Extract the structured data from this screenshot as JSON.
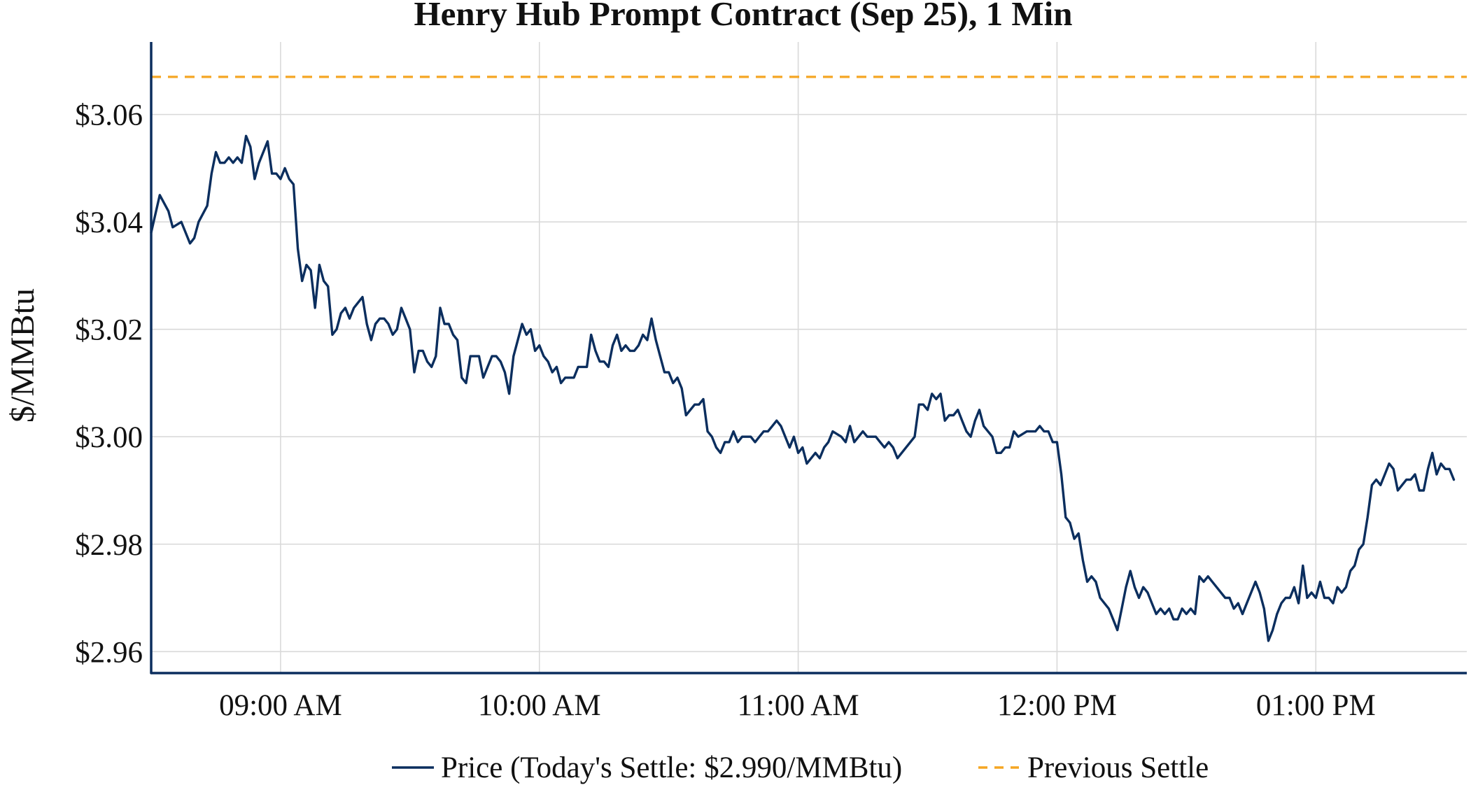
{
  "chart_data": {
    "type": "line",
    "title": "Henry Hub Prompt Contract (Sep 25), 1 Min",
    "ylabel": "$/MMBtu",
    "xlabel": "",
    "x_ticks": [
      "09:00 AM",
      "10:00 AM",
      "11:00 AM",
      "12:00 PM",
      "01:00 PM"
    ],
    "y_ticks": [
      "$2.96",
      "$2.98",
      "$3.00",
      "$3.02",
      "$3.04",
      "$3.06"
    ],
    "y_tick_values": [
      2.96,
      2.98,
      3.0,
      3.02,
      3.04,
      3.06
    ],
    "ylim": [
      2.956,
      3.0735
    ],
    "xlim": [
      "08:30",
      "13:35"
    ],
    "grid": true,
    "legend_position": "bottom-center",
    "colors": {
      "price": "#0b2e5e",
      "previous_settle": "#f5a623",
      "axis": "#0b2e5e"
    },
    "previous_settle": 3.067,
    "series": [
      {
        "name": "Price (Today's Settle: $2.990/MMBtu)",
        "style": "solid",
        "points": [
          [
            "08:30",
            3.038
          ],
          [
            "08:32",
            3.045
          ],
          [
            "08:34",
            3.042
          ],
          [
            "08:35",
            3.039
          ],
          [
            "08:37",
            3.04
          ],
          [
            "08:39",
            3.036
          ],
          [
            "08:40",
            3.037
          ],
          [
            "08:41",
            3.04
          ],
          [
            "08:43",
            3.043
          ],
          [
            "08:44",
            3.049
          ],
          [
            "08:45",
            3.053
          ],
          [
            "08:46",
            3.051
          ],
          [
            "08:47",
            3.051
          ],
          [
            "08:48",
            3.052
          ],
          [
            "08:49",
            3.051
          ],
          [
            "08:50",
            3.052
          ],
          [
            "08:51",
            3.051
          ],
          [
            "08:52",
            3.056
          ],
          [
            "08:53",
            3.054
          ],
          [
            "08:54",
            3.048
          ],
          [
            "08:55",
            3.051
          ],
          [
            "08:57",
            3.055
          ],
          [
            "08:58",
            3.049
          ],
          [
            "08:59",
            3.049
          ],
          [
            "09:00",
            3.048
          ],
          [
            "09:01",
            3.05
          ],
          [
            "09:02",
            3.048
          ],
          [
            "09:03",
            3.047
          ],
          [
            "09:04",
            3.035
          ],
          [
            "09:05",
            3.029
          ],
          [
            "09:06",
            3.032
          ],
          [
            "09:07",
            3.031
          ],
          [
            "09:08",
            3.024
          ],
          [
            "09:09",
            3.032
          ],
          [
            "09:10",
            3.029
          ],
          [
            "09:11",
            3.028
          ],
          [
            "09:12",
            3.019
          ],
          [
            "09:13",
            3.02
          ],
          [
            "09:14",
            3.023
          ],
          [
            "09:15",
            3.024
          ],
          [
            "09:16",
            3.022
          ],
          [
            "09:17",
            3.024
          ],
          [
            "09:19",
            3.026
          ],
          [
            "09:20",
            3.021
          ],
          [
            "09:21",
            3.018
          ],
          [
            "09:22",
            3.021
          ],
          [
            "09:23",
            3.022
          ],
          [
            "09:24",
            3.022
          ],
          [
            "09:25",
            3.021
          ],
          [
            "09:26",
            3.019
          ],
          [
            "09:27",
            3.02
          ],
          [
            "09:28",
            3.024
          ],
          [
            "09:29",
            3.022
          ],
          [
            "09:30",
            3.02
          ],
          [
            "09:31",
            3.012
          ],
          [
            "09:32",
            3.016
          ],
          [
            "09:33",
            3.016
          ],
          [
            "09:34",
            3.014
          ],
          [
            "09:35",
            3.013
          ],
          [
            "09:36",
            3.015
          ],
          [
            "09:37",
            3.024
          ],
          [
            "09:38",
            3.021
          ],
          [
            "09:39",
            3.021
          ],
          [
            "09:40",
            3.019
          ],
          [
            "09:41",
            3.018
          ],
          [
            "09:42",
            3.011
          ],
          [
            "09:43",
            3.01
          ],
          [
            "09:44",
            3.015
          ],
          [
            "09:46",
            3.015
          ],
          [
            "09:47",
            3.011
          ],
          [
            "09:48",
            3.013
          ],
          [
            "09:49",
            3.015
          ],
          [
            "09:50",
            3.015
          ],
          [
            "09:51",
            3.014
          ],
          [
            "09:52",
            3.012
          ],
          [
            "09:53",
            3.008
          ],
          [
            "09:54",
            3.015
          ],
          [
            "09:56",
            3.021
          ],
          [
            "09:57",
            3.019
          ],
          [
            "09:58",
            3.02
          ],
          [
            "09:59",
            3.016
          ],
          [
            "10:00",
            3.017
          ],
          [
            "10:01",
            3.015
          ],
          [
            "10:02",
            3.014
          ],
          [
            "10:03",
            3.012
          ],
          [
            "10:04",
            3.013
          ],
          [
            "10:05",
            3.01
          ],
          [
            "10:06",
            3.011
          ],
          [
            "10:08",
            3.011
          ],
          [
            "10:09",
            3.013
          ],
          [
            "10:11",
            3.013
          ],
          [
            "10:12",
            3.019
          ],
          [
            "10:13",
            3.016
          ],
          [
            "10:14",
            3.014
          ],
          [
            "10:15",
            3.014
          ],
          [
            "10:16",
            3.013
          ],
          [
            "10:17",
            3.017
          ],
          [
            "10:18",
            3.019
          ],
          [
            "10:19",
            3.016
          ],
          [
            "10:20",
            3.017
          ],
          [
            "10:21",
            3.016
          ],
          [
            "10:22",
            3.016
          ],
          [
            "10:23",
            3.017
          ],
          [
            "10:24",
            3.019
          ],
          [
            "10:25",
            3.018
          ],
          [
            "10:26",
            3.022
          ],
          [
            "10:27",
            3.018
          ],
          [
            "10:29",
            3.012
          ],
          [
            "10:30",
            3.012
          ],
          [
            "10:31",
            3.01
          ],
          [
            "10:32",
            3.011
          ],
          [
            "10:33",
            3.009
          ],
          [
            "10:34",
            3.004
          ],
          [
            "10:35",
            3.005
          ],
          [
            "10:36",
            3.006
          ],
          [
            "10:37",
            3.006
          ],
          [
            "10:38",
            3.007
          ],
          [
            "10:39",
            3.001
          ],
          [
            "10:40",
            3.0
          ],
          [
            "10:41",
            2.998
          ],
          [
            "10:42",
            2.997
          ],
          [
            "10:43",
            2.999
          ],
          [
            "10:44",
            2.999
          ],
          [
            "10:45",
            3.001
          ],
          [
            "10:46",
            2.999
          ],
          [
            "10:47",
            3.0
          ],
          [
            "10:49",
            3.0
          ],
          [
            "10:50",
            2.999
          ],
          [
            "10:51",
            3.0
          ],
          [
            "10:52",
            3.001
          ],
          [
            "10:53",
            3.001
          ],
          [
            "10:54",
            3.002
          ],
          [
            "10:55",
            3.003
          ],
          [
            "10:56",
            3.002
          ],
          [
            "10:58",
            2.998
          ],
          [
            "10:59",
            3.0
          ],
          [
            "11:00",
            2.997
          ],
          [
            "11:01",
            2.998
          ],
          [
            "11:02",
            2.995
          ],
          [
            "11:03",
            2.996
          ],
          [
            "11:04",
            2.997
          ],
          [
            "11:05",
            2.996
          ],
          [
            "11:06",
            2.998
          ],
          [
            "11:07",
            2.999
          ],
          [
            "11:08",
            3.001
          ],
          [
            "11:10",
            3.0
          ],
          [
            "11:11",
            2.999
          ],
          [
            "11:12",
            3.002
          ],
          [
            "11:13",
            2.999
          ],
          [
            "11:14",
            3.0
          ],
          [
            "11:15",
            3.001
          ],
          [
            "11:16",
            3.0
          ],
          [
            "11:17",
            3.0
          ],
          [
            "11:18",
            3.0
          ],
          [
            "11:19",
            2.999
          ],
          [
            "11:20",
            2.998
          ],
          [
            "11:21",
            2.999
          ],
          [
            "11:22",
            2.998
          ],
          [
            "11:23",
            2.996
          ],
          [
            "11:25",
            2.998
          ],
          [
            "11:27",
            3.0
          ],
          [
            "11:28",
            3.006
          ],
          [
            "11:29",
            3.006
          ],
          [
            "11:30",
            3.005
          ],
          [
            "11:31",
            3.008
          ],
          [
            "11:32",
            3.007
          ],
          [
            "11:33",
            3.008
          ],
          [
            "11:34",
            3.003
          ],
          [
            "11:35",
            3.004
          ],
          [
            "11:36",
            3.004
          ],
          [
            "11:37",
            3.005
          ],
          [
            "11:38",
            3.003
          ],
          [
            "11:39",
            3.001
          ],
          [
            "11:40",
            3.0
          ],
          [
            "11:41",
            3.003
          ],
          [
            "11:42",
            3.005
          ],
          [
            "11:43",
            3.002
          ],
          [
            "11:45",
            3.0
          ],
          [
            "11:46",
            2.997
          ],
          [
            "11:47",
            2.997
          ],
          [
            "11:48",
            2.998
          ],
          [
            "11:49",
            2.998
          ],
          [
            "11:50",
            3.001
          ],
          [
            "11:51",
            3.0
          ],
          [
            "11:53",
            3.001
          ],
          [
            "11:54",
            3.001
          ],
          [
            "11:55",
            3.001
          ],
          [
            "11:56",
            3.002
          ],
          [
            "11:57",
            3.001
          ],
          [
            "11:58",
            3.001
          ],
          [
            "11:59",
            2.999
          ],
          [
            "12:00",
            2.999
          ],
          [
            "12:01",
            2.993
          ],
          [
            "12:02",
            2.985
          ],
          [
            "12:03",
            2.984
          ],
          [
            "12:04",
            2.981
          ],
          [
            "12:05",
            2.982
          ],
          [
            "12:06",
            2.977
          ],
          [
            "12:07",
            2.973
          ],
          [
            "12:08",
            2.974
          ],
          [
            "12:09",
            2.973
          ],
          [
            "12:10",
            2.97
          ],
          [
            "12:11",
            2.969
          ],
          [
            "12:12",
            2.968
          ],
          [
            "12:13",
            2.966
          ],
          [
            "12:14",
            2.964
          ],
          [
            "12:15",
            2.968
          ],
          [
            "12:16",
            2.972
          ],
          [
            "12:17",
            2.975
          ],
          [
            "12:18",
            2.972
          ],
          [
            "12:19",
            2.97
          ],
          [
            "12:20",
            2.972
          ],
          [
            "12:21",
            2.971
          ],
          [
            "12:22",
            2.969
          ],
          [
            "12:23",
            2.967
          ],
          [
            "12:24",
            2.968
          ],
          [
            "12:25",
            2.967
          ],
          [
            "12:26",
            2.968
          ],
          [
            "12:27",
            2.966
          ],
          [
            "12:28",
            2.966
          ],
          [
            "12:29",
            2.968
          ],
          [
            "12:30",
            2.967
          ],
          [
            "12:31",
            2.968
          ],
          [
            "12:32",
            2.967
          ],
          [
            "12:33",
            2.974
          ],
          [
            "12:34",
            2.973
          ],
          [
            "12:35",
            2.974
          ],
          [
            "12:36",
            2.973
          ],
          [
            "12:37",
            2.972
          ],
          [
            "12:38",
            2.971
          ],
          [
            "12:39",
            2.97
          ],
          [
            "12:40",
            2.97
          ],
          [
            "12:41",
            2.968
          ],
          [
            "12:42",
            2.969
          ],
          [
            "12:43",
            2.967
          ],
          [
            "12:44",
            2.969
          ],
          [
            "12:45",
            2.971
          ],
          [
            "12:46",
            2.973
          ],
          [
            "12:47",
            2.971
          ],
          [
            "12:48",
            2.968
          ],
          [
            "12:49",
            2.962
          ],
          [
            "12:50",
            2.964
          ],
          [
            "12:51",
            2.967
          ],
          [
            "12:52",
            2.969
          ],
          [
            "12:53",
            2.97
          ],
          [
            "12:54",
            2.97
          ],
          [
            "12:55",
            2.972
          ],
          [
            "12:56",
            2.969
          ],
          [
            "12:57",
            2.976
          ],
          [
            "12:58",
            2.97
          ],
          [
            "12:59",
            2.971
          ],
          [
            "13:00",
            2.97
          ],
          [
            "13:01",
            2.973
          ],
          [
            "13:02",
            2.97
          ],
          [
            "13:03",
            2.97
          ],
          [
            "13:04",
            2.969
          ],
          [
            "13:05",
            2.972
          ],
          [
            "13:06",
            2.971
          ],
          [
            "13:07",
            2.972
          ],
          [
            "13:08",
            2.975
          ],
          [
            "13:09",
            2.976
          ],
          [
            "13:10",
            2.979
          ],
          [
            "13:11",
            2.98
          ],
          [
            "13:12",
            2.985
          ],
          [
            "13:13",
            2.991
          ],
          [
            "13:14",
            2.992
          ],
          [
            "13:15",
            2.991
          ],
          [
            "13:16",
            2.993
          ],
          [
            "13:17",
            2.995
          ],
          [
            "13:18",
            2.994
          ],
          [
            "13:19",
            2.99
          ],
          [
            "13:20",
            2.991
          ],
          [
            "13:21",
            2.992
          ],
          [
            "13:22",
            2.992
          ],
          [
            "13:23",
            2.993
          ],
          [
            "13:24",
            2.99
          ],
          [
            "13:25",
            2.99
          ],
          [
            "13:26",
            2.994
          ],
          [
            "13:27",
            2.997
          ],
          [
            "13:28",
            2.993
          ],
          [
            "13:29",
            2.995
          ],
          [
            "13:30",
            2.994
          ],
          [
            "13:31",
            2.994
          ],
          [
            "13:32",
            2.992
          ]
        ]
      },
      {
        "name": "Previous Settle",
        "style": "dashed",
        "points": [
          [
            "08:30",
            3.067
          ],
          [
            "13:35",
            3.067
          ]
        ]
      }
    ]
  }
}
